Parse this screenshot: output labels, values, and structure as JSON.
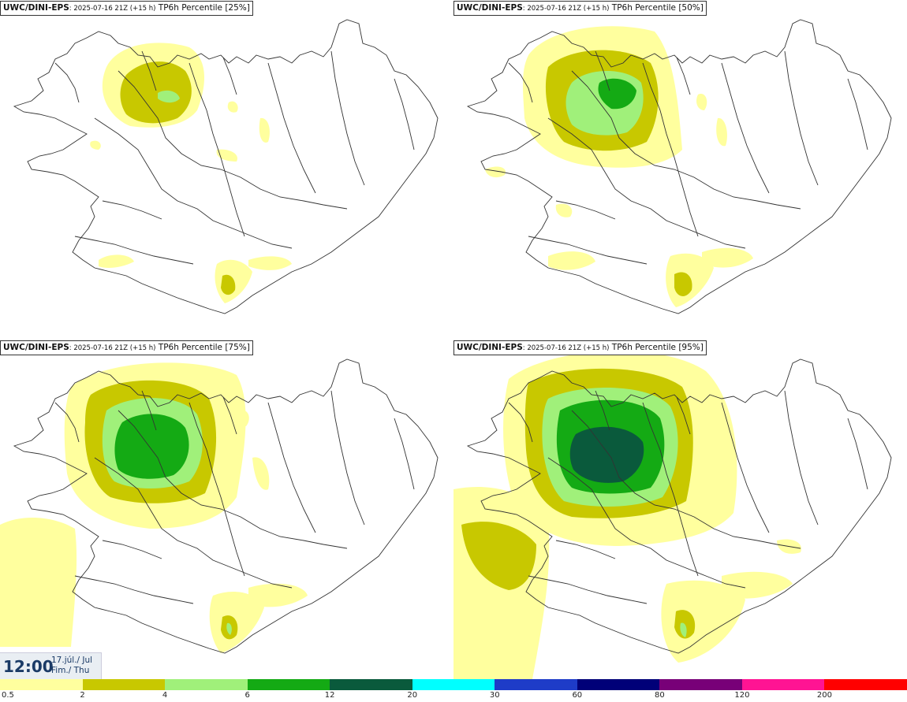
{
  "panels": [
    {
      "model": "UWC/DINI-EPS",
      "meta": ": 2025-07-16 21Z (+15 h)",
      "param": "TP6h Percentile [25%]"
    },
    {
      "model": "UWC/DINI-EPS",
      "meta": ": 2025-07-16 21Z (+15 h)",
      "param": "TP6h Percentile [50%]"
    },
    {
      "model": "UWC/DINI-EPS",
      "meta": ": 2025-07-16 21Z (+15 h)",
      "param": "TP6h Percentile [75%]"
    },
    {
      "model": "UWC/DINI-EPS",
      "meta": ": 2025-07-16 21Z (+15 h)",
      "param": "TP6h Percentile [95%]"
    }
  ],
  "valid_time": {
    "time": "12:00",
    "date_line1": "17.júl./ Jul",
    "date_line2": "Fim./ Thu"
  },
  "legend": {
    "labels": [
      "0.5",
      "2",
      "4",
      "6",
      "12",
      "20",
      "30",
      "60",
      "80",
      "120",
      "200"
    ],
    "colors": [
      "#ffff9e",
      "#c8c800",
      "#a0f07a",
      "#14aa14",
      "#0a5a3c",
      "#00ffff",
      "#1e3cc8",
      "#000078",
      "#780078",
      "#ff1493",
      "#ff0000"
    ]
  }
}
